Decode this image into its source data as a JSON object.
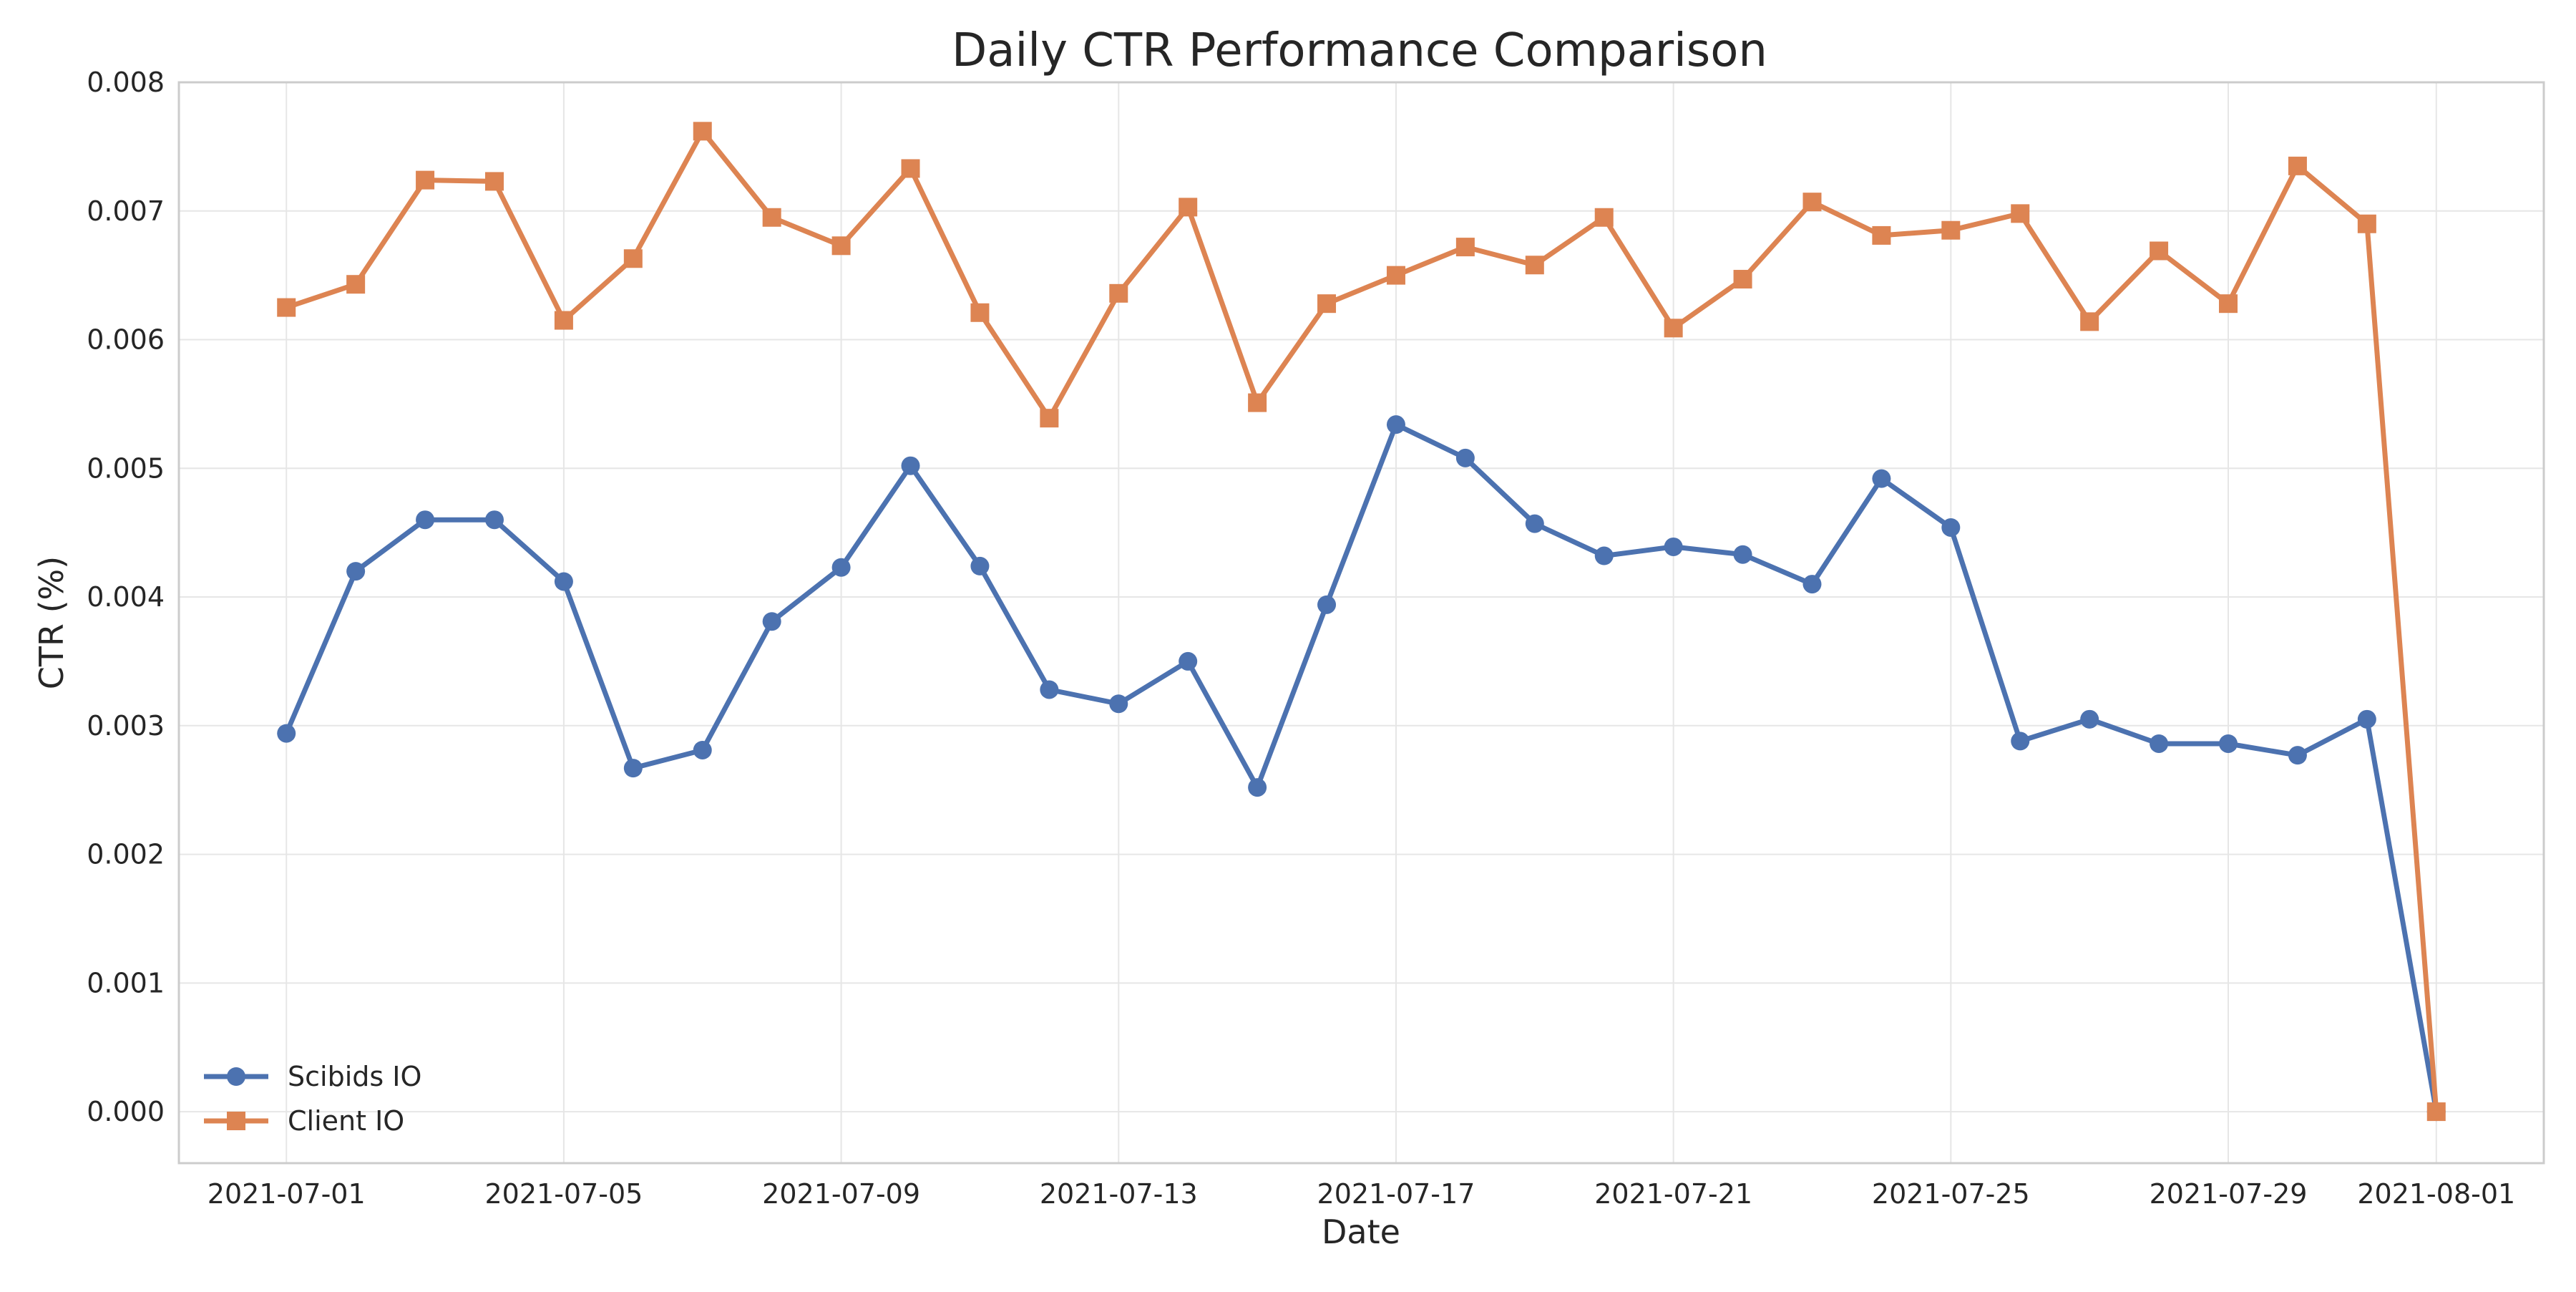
{
  "chart_data": {
    "type": "line",
    "title": "Daily CTR Performance Comparison",
    "xlabel": "Date",
    "ylabel": "CTR (%)",
    "x": [
      "2021-07-01",
      "2021-07-02",
      "2021-07-03",
      "2021-07-04",
      "2021-07-05",
      "2021-07-06",
      "2021-07-07",
      "2021-07-08",
      "2021-07-09",
      "2021-07-10",
      "2021-07-11",
      "2021-07-12",
      "2021-07-13",
      "2021-07-14",
      "2021-07-15",
      "2021-07-16",
      "2021-07-17",
      "2021-07-18",
      "2021-07-19",
      "2021-07-20",
      "2021-07-21",
      "2021-07-22",
      "2021-07-23",
      "2021-07-24",
      "2021-07-25",
      "2021-07-26",
      "2021-07-27",
      "2021-07-28",
      "2021-07-29",
      "2021-07-30",
      "2021-07-31",
      "2021-08-01"
    ],
    "x_ticks": [
      "2021-07-01",
      "2021-07-05",
      "2021-07-09",
      "2021-07-13",
      "2021-07-17",
      "2021-07-21",
      "2021-07-25",
      "2021-07-29",
      "2021-08-01"
    ],
    "ylim": [
      -0.0004,
      0.008
    ],
    "y_ticks": [
      "0.000",
      "0.001",
      "0.002",
      "0.003",
      "0.004",
      "0.005",
      "0.006",
      "0.007",
      "0.008"
    ],
    "grid": true,
    "legend_position": "lower-left",
    "series": [
      {
        "name": "Scibids IO",
        "color": "#4C72B0",
        "marker": "circle",
        "values": [
          0.00294,
          0.0042,
          0.0046,
          0.0046,
          0.00412,
          0.00267,
          0.00281,
          0.00381,
          0.00423,
          0.00502,
          0.00424,
          0.00328,
          0.00317,
          0.0035,
          0.00252,
          0.00394,
          0.00534,
          0.00508,
          0.00457,
          0.00432,
          0.00439,
          0.00433,
          0.0041,
          0.00492,
          0.00454,
          0.00288,
          0.00305,
          0.00286,
          0.00286,
          0.00277,
          0.00305,
          0.0
        ]
      },
      {
        "name": "Client IO",
        "color": "#DD8452",
        "marker": "square",
        "values": [
          0.00625,
          0.00643,
          0.00724,
          0.00723,
          0.00615,
          0.00663,
          0.00762,
          0.00695,
          0.00673,
          0.00733,
          0.00621,
          0.00539,
          0.00636,
          0.00703,
          0.00551,
          0.00628,
          0.0065,
          0.00672,
          0.00658,
          0.00695,
          0.00609,
          0.00647,
          0.00707,
          0.00681,
          0.00685,
          0.00698,
          0.00614,
          0.00669,
          0.00628,
          0.00735,
          0.0069,
          0.0
        ]
      }
    ]
  }
}
